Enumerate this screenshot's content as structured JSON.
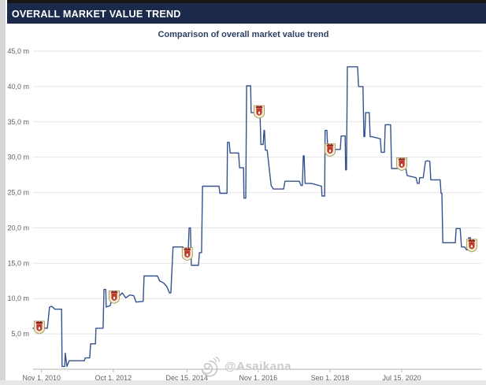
{
  "header": {
    "title": "OVERALL MARKET VALUE TREND"
  },
  "chart": {
    "subtitle": "Comparison of overall market value trend"
  },
  "watermark": {
    "handle": "@Asaikana",
    "icon": "spiral-doodle-icon"
  },
  "colors": {
    "header_bg": "#1b2a4a",
    "header_text": "#ffffff",
    "subtitle_text": "#2c3f63",
    "line": "#35528f",
    "grid": "#e4e4e4",
    "axis": "#b3b3b3",
    "tick_text": "#5f5f5f",
    "watermark": "#c3c3c3",
    "crest_body": "#f3ecd2",
    "crest_border": "#a59858",
    "crest_red": "#c0392b",
    "crest_dark": "#8b1d1d"
  },
  "chart_data": {
    "type": "line",
    "title": "Comparison of overall market value trend",
    "xlabel": "",
    "ylabel": "",
    "unit": "million",
    "ylim": [
      0,
      45
    ],
    "grid": true,
    "legend": "none",
    "x_axis_kind": "time (ticks evenly spaced, pos_pct = % across plot width)",
    "y_ticks": [
      {
        "value": 5,
        "label": "5,0 m"
      },
      {
        "value": 10,
        "label": "10,0 m"
      },
      {
        "value": 15,
        "label": "15,0 m"
      },
      {
        "value": 20,
        "label": "20,0 m"
      },
      {
        "value": 25,
        "label": "25,0 m"
      },
      {
        "value": 30,
        "label": "30,0 m"
      },
      {
        "value": 35,
        "label": "35,0 m"
      },
      {
        "value": 40,
        "label": "40,0 m"
      },
      {
        "value": 45,
        "label": "45,0 m"
      }
    ],
    "x_ticks": [
      {
        "pos_pct": 1.9,
        "label": "Nov 1, 2010"
      },
      {
        "pos_pct": 18.0,
        "label": "Oct 1, 2012"
      },
      {
        "pos_pct": 34.5,
        "label": "Dec 15, 2014"
      },
      {
        "pos_pct": 50.5,
        "label": "Nov 1, 2016"
      },
      {
        "pos_pct": 66.6,
        "label": "Sep 1, 2018"
      },
      {
        "pos_pct": 82.7,
        "label": "Jul 15, 2020"
      }
    ],
    "series": [
      {
        "name": "Overall market value",
        "points": [
          [
            0,
            5.8
          ],
          [
            1.4,
            5.9
          ],
          [
            3.2,
            5.8
          ],
          [
            3.7,
            8.8
          ],
          [
            4.2,
            8.9
          ],
          [
            4.9,
            8.5
          ],
          [
            6.4,
            8.5
          ],
          [
            6.5,
            0.4
          ],
          [
            7.1,
            0.4
          ],
          [
            7.2,
            2.3
          ],
          [
            7.6,
            0.4
          ],
          [
            8.1,
            1.2
          ],
          [
            11.5,
            1.2
          ],
          [
            11.7,
            1.6
          ],
          [
            12.7,
            1.6
          ],
          [
            12.9,
            3.6
          ],
          [
            14,
            3.6
          ],
          [
            14.1,
            5.8
          ],
          [
            15.7,
            5.8
          ],
          [
            15.9,
            11.3
          ],
          [
            16.3,
            11.3
          ],
          [
            16.4,
            8.8
          ],
          [
            17.3,
            9
          ],
          [
            17.8,
            10.2
          ],
          [
            19.1,
            10.2
          ],
          [
            20,
            10.8
          ],
          [
            20.8,
            10.1
          ],
          [
            21.7,
            10.5
          ],
          [
            22.6,
            10.4
          ],
          [
            23.1,
            9.5
          ],
          [
            24.7,
            9.6
          ],
          [
            24.9,
            13.2
          ],
          [
            27.9,
            13.2
          ],
          [
            28.4,
            12.5
          ],
          [
            29.3,
            12.2
          ],
          [
            30,
            11.7
          ],
          [
            30.6,
            10.8
          ],
          [
            30.9,
            10.8
          ],
          [
            31.4,
            17.3
          ],
          [
            33.6,
            17.3
          ],
          [
            33.9,
            16.9
          ],
          [
            34.8,
            16.9
          ],
          [
            35,
            20
          ],
          [
            35.3,
            20
          ],
          [
            35.5,
            14.7
          ],
          [
            37.1,
            14.7
          ],
          [
            37.3,
            16.5
          ],
          [
            37.8,
            16.5
          ],
          [
            38,
            25.9
          ],
          [
            41.7,
            25.9
          ],
          [
            41.9,
            24.9
          ],
          [
            43.5,
            24.9
          ],
          [
            43.6,
            32.1
          ],
          [
            44,
            32.1
          ],
          [
            44.2,
            30.6
          ],
          [
            46.1,
            30.6
          ],
          [
            46.3,
            28.5
          ],
          [
            47.2,
            28.5
          ],
          [
            47.3,
            24.2
          ],
          [
            47.7,
            24.2
          ],
          [
            47.9,
            40.1
          ],
          [
            48.8,
            40.1
          ],
          [
            48.9,
            36.3
          ],
          [
            50.9,
            36.3
          ],
          [
            51.1,
            31.8
          ],
          [
            51.6,
            31.8
          ],
          [
            51.8,
            33.8
          ],
          [
            51.9,
            33.8
          ],
          [
            52.1,
            31
          ],
          [
            52.5,
            31
          ],
          [
            53.4,
            26
          ],
          [
            53.9,
            25.5
          ],
          [
            56.2,
            25.5
          ],
          [
            56.5,
            26.6
          ],
          [
            59.7,
            26.6
          ],
          [
            60.1,
            26
          ],
          [
            60.4,
            26
          ],
          [
            60.6,
            30.2
          ],
          [
            60.8,
            30.2
          ],
          [
            61,
            26.3
          ],
          [
            62.4,
            26.3
          ],
          [
            64.7,
            25.9
          ],
          [
            64.8,
            24.5
          ],
          [
            65.4,
            24.5
          ],
          [
            65.5,
            33.8
          ],
          [
            65.9,
            33.8
          ],
          [
            66.1,
            31.1
          ],
          [
            68.9,
            31.1
          ],
          [
            69.1,
            33
          ],
          [
            70,
            33
          ],
          [
            70.1,
            28.2
          ],
          [
            70.3,
            28.2
          ],
          [
            70.5,
            42.8
          ],
          [
            72.8,
            42.8
          ],
          [
            73,
            40
          ],
          [
            74,
            40
          ],
          [
            74.2,
            32.9
          ],
          [
            74.4,
            32.9
          ],
          [
            74.6,
            36.3
          ],
          [
            75.4,
            36.3
          ],
          [
            75.6,
            32.9
          ],
          [
            76,
            32.9
          ],
          [
            77.9,
            32.6
          ],
          [
            78.1,
            30.7
          ],
          [
            78.8,
            30.7
          ],
          [
            79,
            34.6
          ],
          [
            80.2,
            34.6
          ],
          [
            80.4,
            28.4
          ],
          [
            83.6,
            28.4
          ],
          [
            83.9,
            27.4
          ],
          [
            85.9,
            27.1
          ],
          [
            86.2,
            26.3
          ],
          [
            86.6,
            26.3
          ],
          [
            86.7,
            27.1
          ],
          [
            87.5,
            27.1
          ],
          [
            88,
            29.4
          ],
          [
            88.5,
            29.5
          ],
          [
            89,
            29.4
          ],
          [
            89.2,
            26.8
          ],
          [
            91.3,
            26.8
          ],
          [
            91.5,
            24.9
          ],
          [
            91.7,
            24.9
          ],
          [
            91.9,
            17.9
          ],
          [
            94.7,
            17.9
          ],
          [
            94.9,
            19.9
          ],
          [
            95.8,
            19.9
          ],
          [
            96.1,
            17.3
          ],
          [
            96.8,
            17.3
          ],
          [
            97.2,
            16.9
          ],
          [
            97.5,
            16.9
          ],
          [
            97.7,
            18.6
          ],
          [
            98.1,
            18.6
          ],
          [
            98.2,
            17.5
          ],
          [
            99.5,
            17.5
          ]
        ]
      }
    ],
    "markers": [
      {
        "pos_pct": 1.4,
        "value": 5.9,
        "icon": "club-crest-icon"
      },
      {
        "pos_pct": 18.2,
        "value": 10.2,
        "icon": "club-crest-icon"
      },
      {
        "pos_pct": 34.6,
        "value": 16.3,
        "icon": "club-crest-icon"
      },
      {
        "pos_pct": 50.7,
        "value": 36.4,
        "icon": "club-crest-icon"
      },
      {
        "pos_pct": 66.6,
        "value": 31.0,
        "icon": "club-crest-icon"
      },
      {
        "pos_pct": 82.7,
        "value": 29.0,
        "icon": "club-crest-icon"
      },
      {
        "pos_pct": 98.4,
        "value": 17.5,
        "icon": "club-crest-icon"
      }
    ]
  }
}
